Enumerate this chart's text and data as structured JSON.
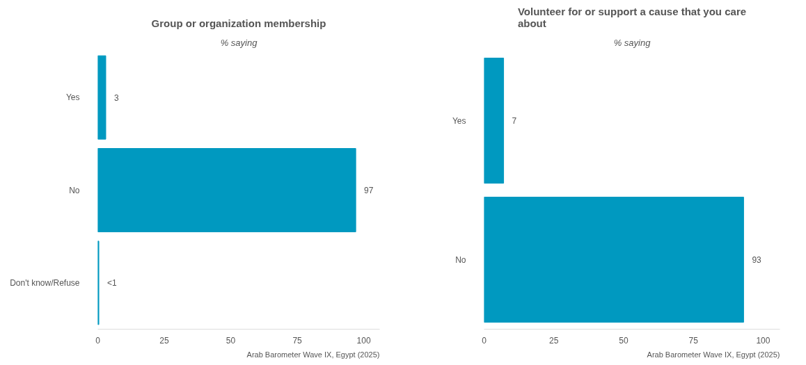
{
  "chart_data": [
    {
      "type": "bar",
      "orientation": "horizontal",
      "title": "Group or organization membership",
      "subtitle": "% saying",
      "categories": [
        "Yes",
        "No",
        "Don't know/Refuse"
      ],
      "values": [
        3,
        97,
        0.4
      ],
      "value_labels": [
        "3",
        "97",
        "<1"
      ],
      "colors": [
        "#0099c0",
        "#0099c0",
        "#0099c0"
      ],
      "xlim": [
        0,
        106
      ],
      "xticks": [
        0,
        25,
        50,
        75,
        100
      ],
      "grid": false,
      "annotations": [
        "Arab Barometer Wave IX, Egypt (2025)"
      ]
    },
    {
      "type": "bar",
      "orientation": "horizontal",
      "title": "Volunteer for or support a cause that you care about",
      "subtitle": "% saying",
      "categories": [
        "Yes",
        "No"
      ],
      "values": [
        7,
        93
      ],
      "value_labels": [
        "7",
        "93"
      ],
      "colors": [
        "#0099c0",
        "#0099c0"
      ],
      "xlim": [
        0,
        106
      ],
      "xticks": [
        0,
        25,
        50,
        75,
        100
      ],
      "grid": false,
      "annotations": [
        "Arab Barometer Wave IX, Egypt (2025)"
      ]
    }
  ]
}
